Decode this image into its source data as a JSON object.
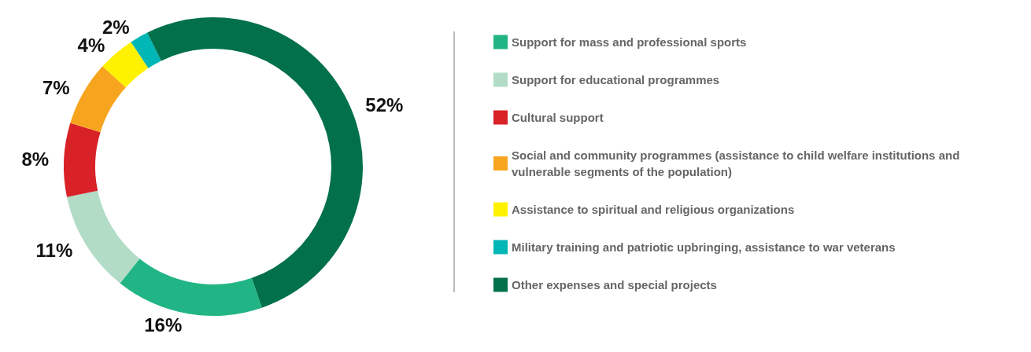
{
  "chart_data": {
    "type": "donut",
    "categories": [
      "Support for mass and professional sports",
      "Support for educational programmes",
      "Cultural support",
      "Social and community programmes (assistance to child welfare institutions and vulnerable segments of the population)",
      "Assistance to spiritual and religious organizations",
      "Military training and patriotic upbringing, assistance to war veterans",
      "Other expenses and special projects"
    ],
    "values": [
      16,
      11,
      8,
      7,
      4,
      2,
      52
    ],
    "colors": [
      "#21b585",
      "#b2dcc6",
      "#d92128",
      "#f7a51e",
      "#fff200",
      "#00b7b5",
      "#01704b"
    ],
    "value_labels": [
      "16%",
      "11%",
      "8%",
      "7%",
      "4%",
      "2%",
      "52%"
    ],
    "legend": "right"
  }
}
